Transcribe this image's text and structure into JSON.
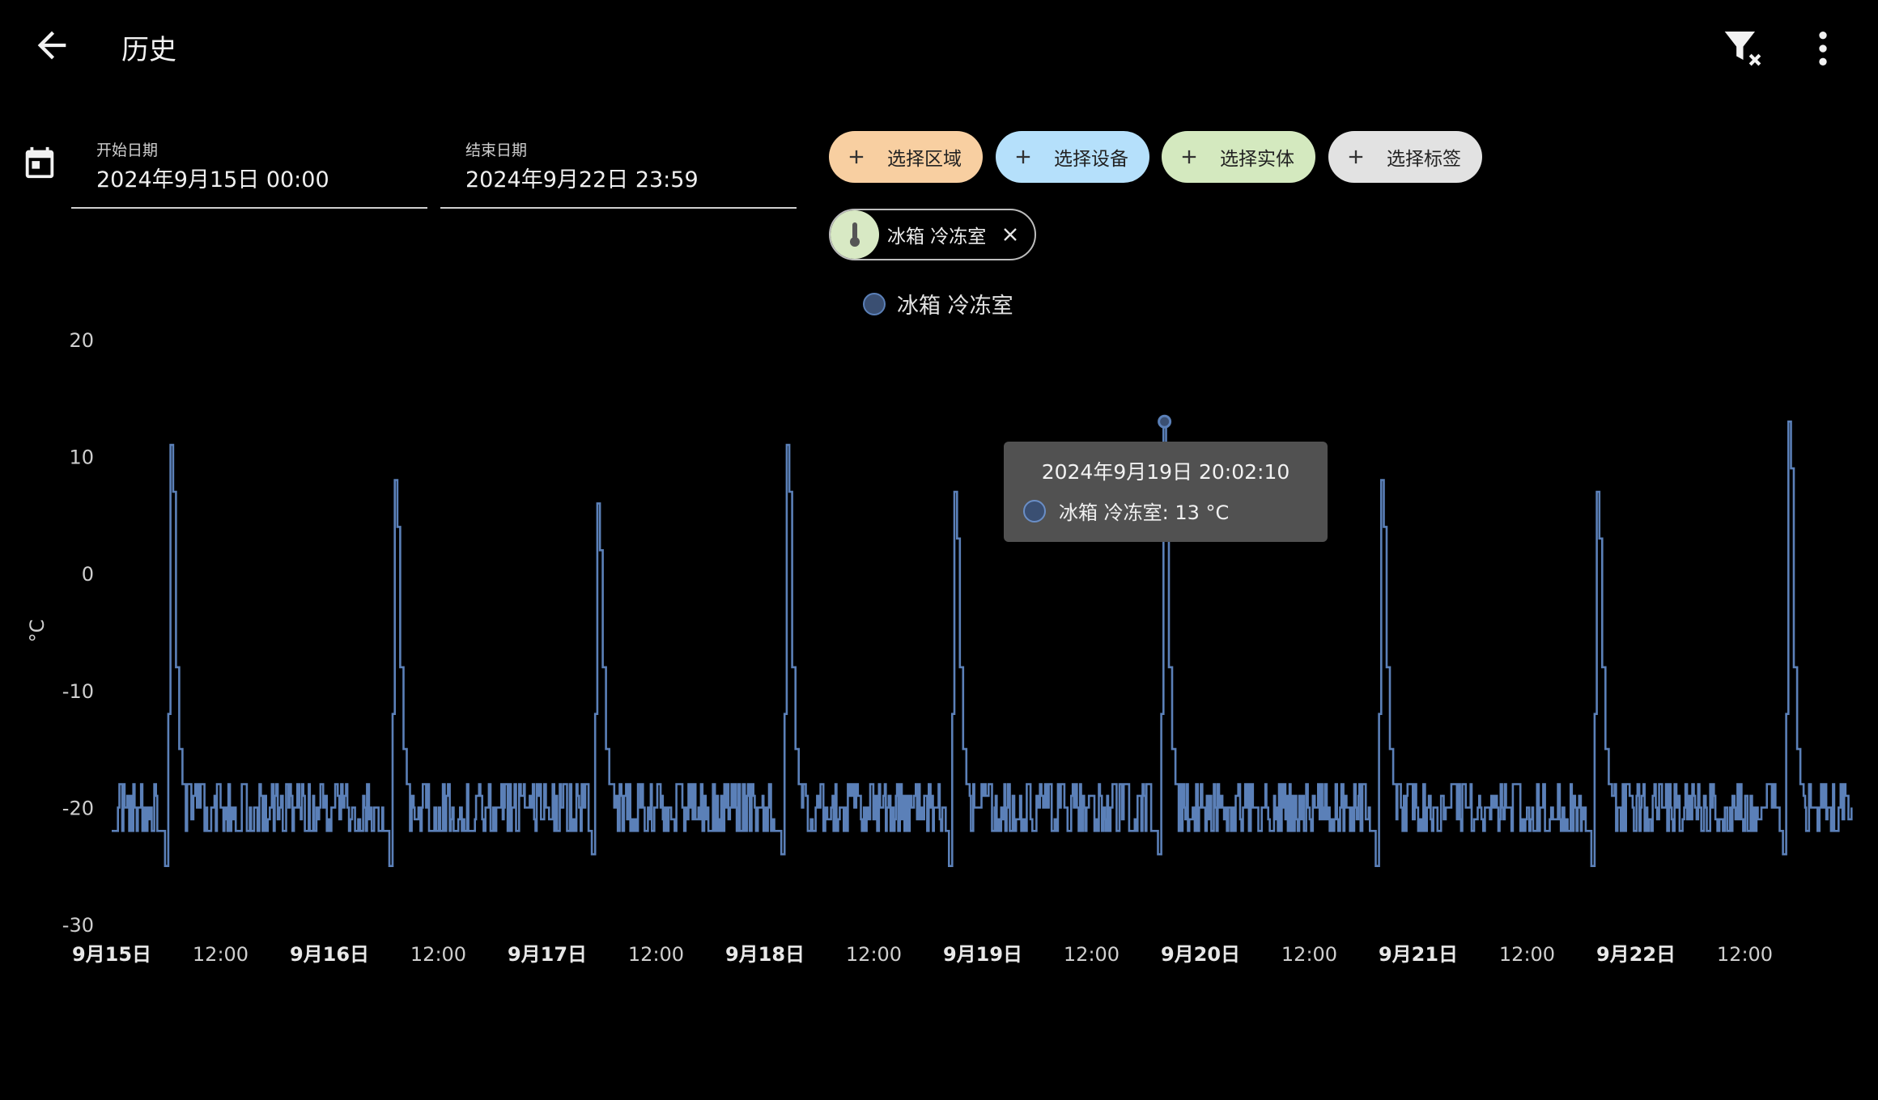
{
  "header": {
    "title": "历史",
    "back_icon": "arrow-left-icon",
    "filter_clear_icon": "filter-remove-icon",
    "menu_icon": "dots-vertical-icon"
  },
  "date_range": {
    "start_label": "开始日期",
    "start_value": "2024年9月15日 00:00",
    "end_label": "结束日期",
    "end_value": "2024年9月22日 23:59"
  },
  "target_chips": [
    {
      "label": "选择区域",
      "color": "#f8cfa1"
    },
    {
      "label": "选择设备",
      "color": "#b5e0fb"
    },
    {
      "label": "选择实体",
      "color": "#d4e9bf"
    },
    {
      "label": "选择标签",
      "color": "#e2e2e2"
    }
  ],
  "selected_entity": {
    "name": "冰箱 冷冻室",
    "icon": "thermometer-icon"
  },
  "tooltip": {
    "title": "2024年9月19日 20:02:10",
    "row": "冰箱 冷冻室: 13 °C"
  },
  "colors": {
    "series": "#5b80b8",
    "background": "#000000"
  },
  "chart_data": {
    "type": "line",
    "step": true,
    "ylabel": "°C",
    "ylim": [
      -30,
      20
    ],
    "yticks": [
      "20",
      "10",
      "0",
      "-10",
      "-20",
      "-30"
    ],
    "ytick_values": [
      20,
      10,
      0,
      -10,
      -20,
      -30
    ],
    "xlim_days": [
      0,
      8
    ],
    "xticks": [
      {
        "label": "9月15日",
        "day": 0,
        "bold": true
      },
      {
        "label": "12:00",
        "day": 0.5,
        "bold": false
      },
      {
        "label": "9月16日",
        "day": 1,
        "bold": true
      },
      {
        "label": "12:00",
        "day": 1.5,
        "bold": false
      },
      {
        "label": "9月17日",
        "day": 2,
        "bold": true
      },
      {
        "label": "12:00",
        "day": 2.5,
        "bold": false
      },
      {
        "label": "9月18日",
        "day": 3,
        "bold": true
      },
      {
        "label": "12:00",
        "day": 3.5,
        "bold": false
      },
      {
        "label": "9月19日",
        "day": 4,
        "bold": true
      },
      {
        "label": "12:00",
        "day": 4.5,
        "bold": false
      },
      {
        "label": "9月20日",
        "day": 5,
        "bold": true
      },
      {
        "label": "12:00",
        "day": 5.5,
        "bold": false
      },
      {
        "label": "9月21日",
        "day": 6,
        "bold": true
      },
      {
        "label": "12:00",
        "day": 6.5,
        "bold": false
      },
      {
        "label": "9月22日",
        "day": 7,
        "bold": true
      },
      {
        "label": "12:00",
        "day": 7.5,
        "bold": false
      }
    ],
    "grid": false,
    "legend": "top-center",
    "series": [
      {
        "name": "冰箱 冷冻室",
        "baseline_range": [
          -22,
          -18
        ],
        "spikes": [
          {
            "day": 0.27,
            "min": -25,
            "peak": 11
          },
          {
            "day": 1.3,
            "min": -25,
            "peak": 8
          },
          {
            "day": 2.23,
            "min": -24,
            "peak": 6
          },
          {
            "day": 3.1,
            "min": -24,
            "peak": 11
          },
          {
            "day": 3.87,
            "min": -25,
            "peak": 7
          },
          {
            "day": 4.83,
            "min": -24,
            "peak": 13
          },
          {
            "day": 5.83,
            "min": -25,
            "peak": 8
          },
          {
            "day": 6.82,
            "min": -25,
            "peak": 7
          },
          {
            "day": 7.7,
            "min": -24,
            "peak": 13
          }
        ]
      }
    ],
    "highlight": {
      "day": 4.835,
      "value": 13
    }
  }
}
